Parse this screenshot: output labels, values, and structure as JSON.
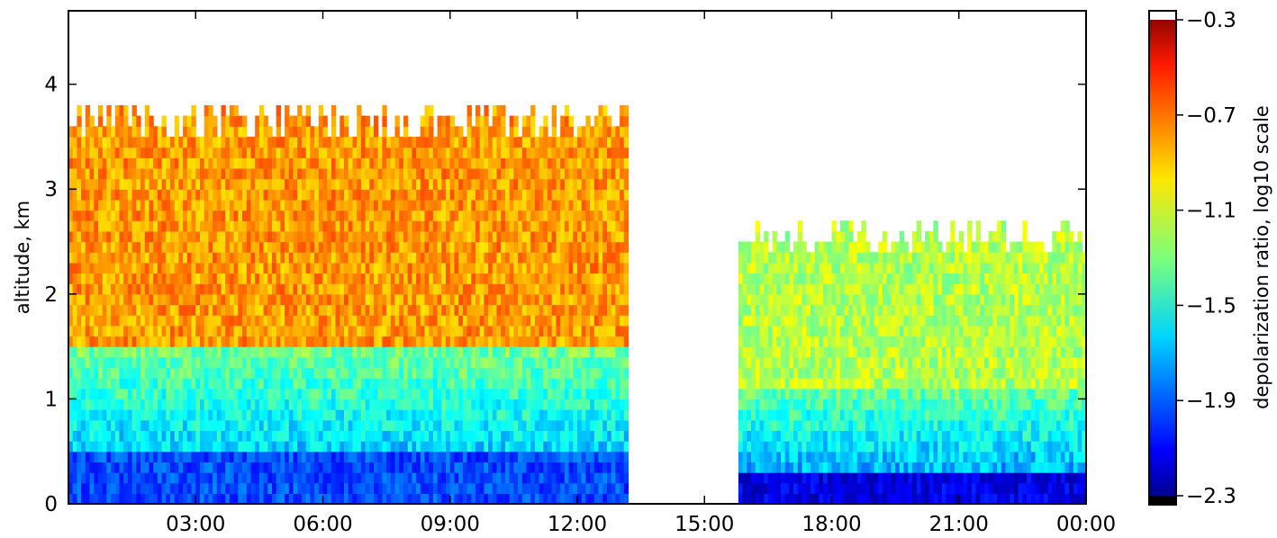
{
  "chart_data": {
    "type": "heatmap",
    "title": "",
    "xlabel": "",
    "ylabel": "altitude, km",
    "x_tick_labels": [
      "03:00",
      "06:00",
      "09:00",
      "12:00",
      "15:00",
      "18:00",
      "21:00",
      "00:00"
    ],
    "x_tick_hours": [
      3,
      6,
      9,
      12,
      15,
      18,
      21,
      24
    ],
    "x_range_hours": [
      0,
      24
    ],
    "y_tick_labels": [
      "0",
      "1",
      "2",
      "3",
      "4"
    ],
    "y_ticks": [
      0,
      1,
      2,
      3,
      4
    ],
    "ylim": [
      0,
      4.7
    ],
    "colorbar": {
      "label": "depolarization ratio, log10 scale",
      "tick_labels": [
        "−0.3",
        "−0.7",
        "−1.1",
        "−1.5",
        "−1.9",
        "−2.3"
      ],
      "ticks": [
        -0.3,
        -0.7,
        -1.1,
        -1.5,
        -1.9,
        -2.3
      ],
      "range": [
        -2.3,
        -0.3
      ],
      "colormap": "jet",
      "under_color": "#000000",
      "over_color": "#ffffff"
    },
    "grid": false,
    "legend": "none",
    "data_regions": [
      {
        "t_start": 0.0,
        "t_end": 13.2,
        "alt_top": 3.6,
        "alt_bottom": 0.0,
        "upper_layer_value": -0.85,
        "lower_layer_value": -1.65,
        "surface_value": -1.9
      },
      {
        "t_start": 15.8,
        "t_end": 24.0,
        "alt_top": 2.5,
        "alt_bottom": 0.0,
        "upper_layer_value": -1.2,
        "lower_layer_value": -1.7,
        "surface_value": -2.1
      }
    ],
    "cloud_contour_color": "#ffffff"
  }
}
